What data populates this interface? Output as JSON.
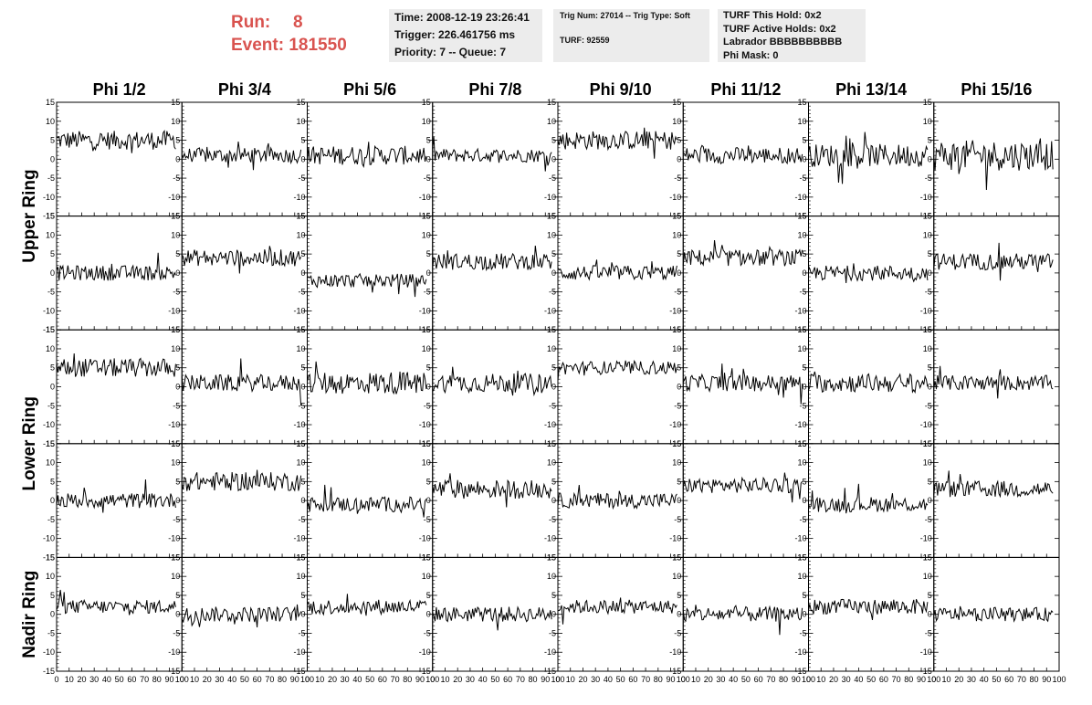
{
  "header": {
    "run_label": "Run:",
    "run_value": "8",
    "event_label": "Event:",
    "event_value": "181550"
  },
  "info_box_1": {
    "time": "Time: 2008-12-19 23:26:41",
    "trigger": "Trigger: 226.461756 ms",
    "priority": "Priority: 7 -- Queue: 7"
  },
  "info_box_2": {
    "trig": "Trig Num: 27014 -- Trig Type: Soft",
    "turf": "TURF: 92559"
  },
  "info_box_3": {
    "this_hold": "TURF This Hold: 0x2",
    "active_holds": "TURF Active Holds: 0x2",
    "labrador": "Labrador BBBBBBBBBB",
    "phi_mask": "Phi Mask: 0"
  },
  "colors": {
    "header_text": "#d9534f",
    "box_bg": "#ececec",
    "trace": "#000000"
  },
  "chart_data": {
    "type": "line",
    "columns": [
      "Phi 1/2",
      "Phi 3/4",
      "Phi 5/6",
      "Phi 7/8",
      "Phi 9/10",
      "Phi 11/12",
      "Phi 13/14",
      "Phi 15/16"
    ],
    "ring_labels": [
      {
        "name": "Upper Ring",
        "rows": [
          0,
          1
        ]
      },
      {
        "name": "Lower Ring",
        "rows": [
          2,
          3
        ]
      },
      {
        "name": "Nadir Ring",
        "rows": [
          4
        ]
      }
    ],
    "xlim": [
      0,
      100
    ],
    "ylim": [
      -15,
      15
    ],
    "x_ticks": [
      0,
      10,
      20,
      30,
      40,
      50,
      60,
      70,
      80,
      90,
      100
    ],
    "y_ticks": [
      -15,
      -10,
      -5,
      0,
      5,
      10,
      15
    ],
    "samples_per_trace": 96,
    "trace_baselines": [
      [
        5,
        1,
        1,
        1,
        5,
        1,
        1,
        1
      ],
      [
        0,
        4,
        -2,
        3,
        0,
        4,
        0,
        3
      ],
      [
        5,
        1,
        1,
        1,
        5,
        1,
        1,
        1
      ],
      [
        0,
        5,
        -1,
        3,
        0,
        4,
        -1,
        3
      ],
      [
        2,
        0,
        2,
        0,
        2,
        0,
        2,
        0
      ]
    ],
    "trace_amplitudes": [
      [
        2.5,
        2,
        2.5,
        1.8,
        2.5,
        2.2,
        3,
        4
      ],
      [
        2,
        2.2,
        1.8,
        2.2,
        2,
        2.2,
        2,
        2.2
      ],
      [
        2.5,
        2.2,
        3,
        2.5,
        1.8,
        2.2,
        2.5,
        2
      ],
      [
        2,
        2.5,
        2,
        2.5,
        2,
        2,
        2,
        2.2
      ],
      [
        1.8,
        2,
        2,
        2,
        1.8,
        2,
        2,
        1.8
      ]
    ]
  }
}
